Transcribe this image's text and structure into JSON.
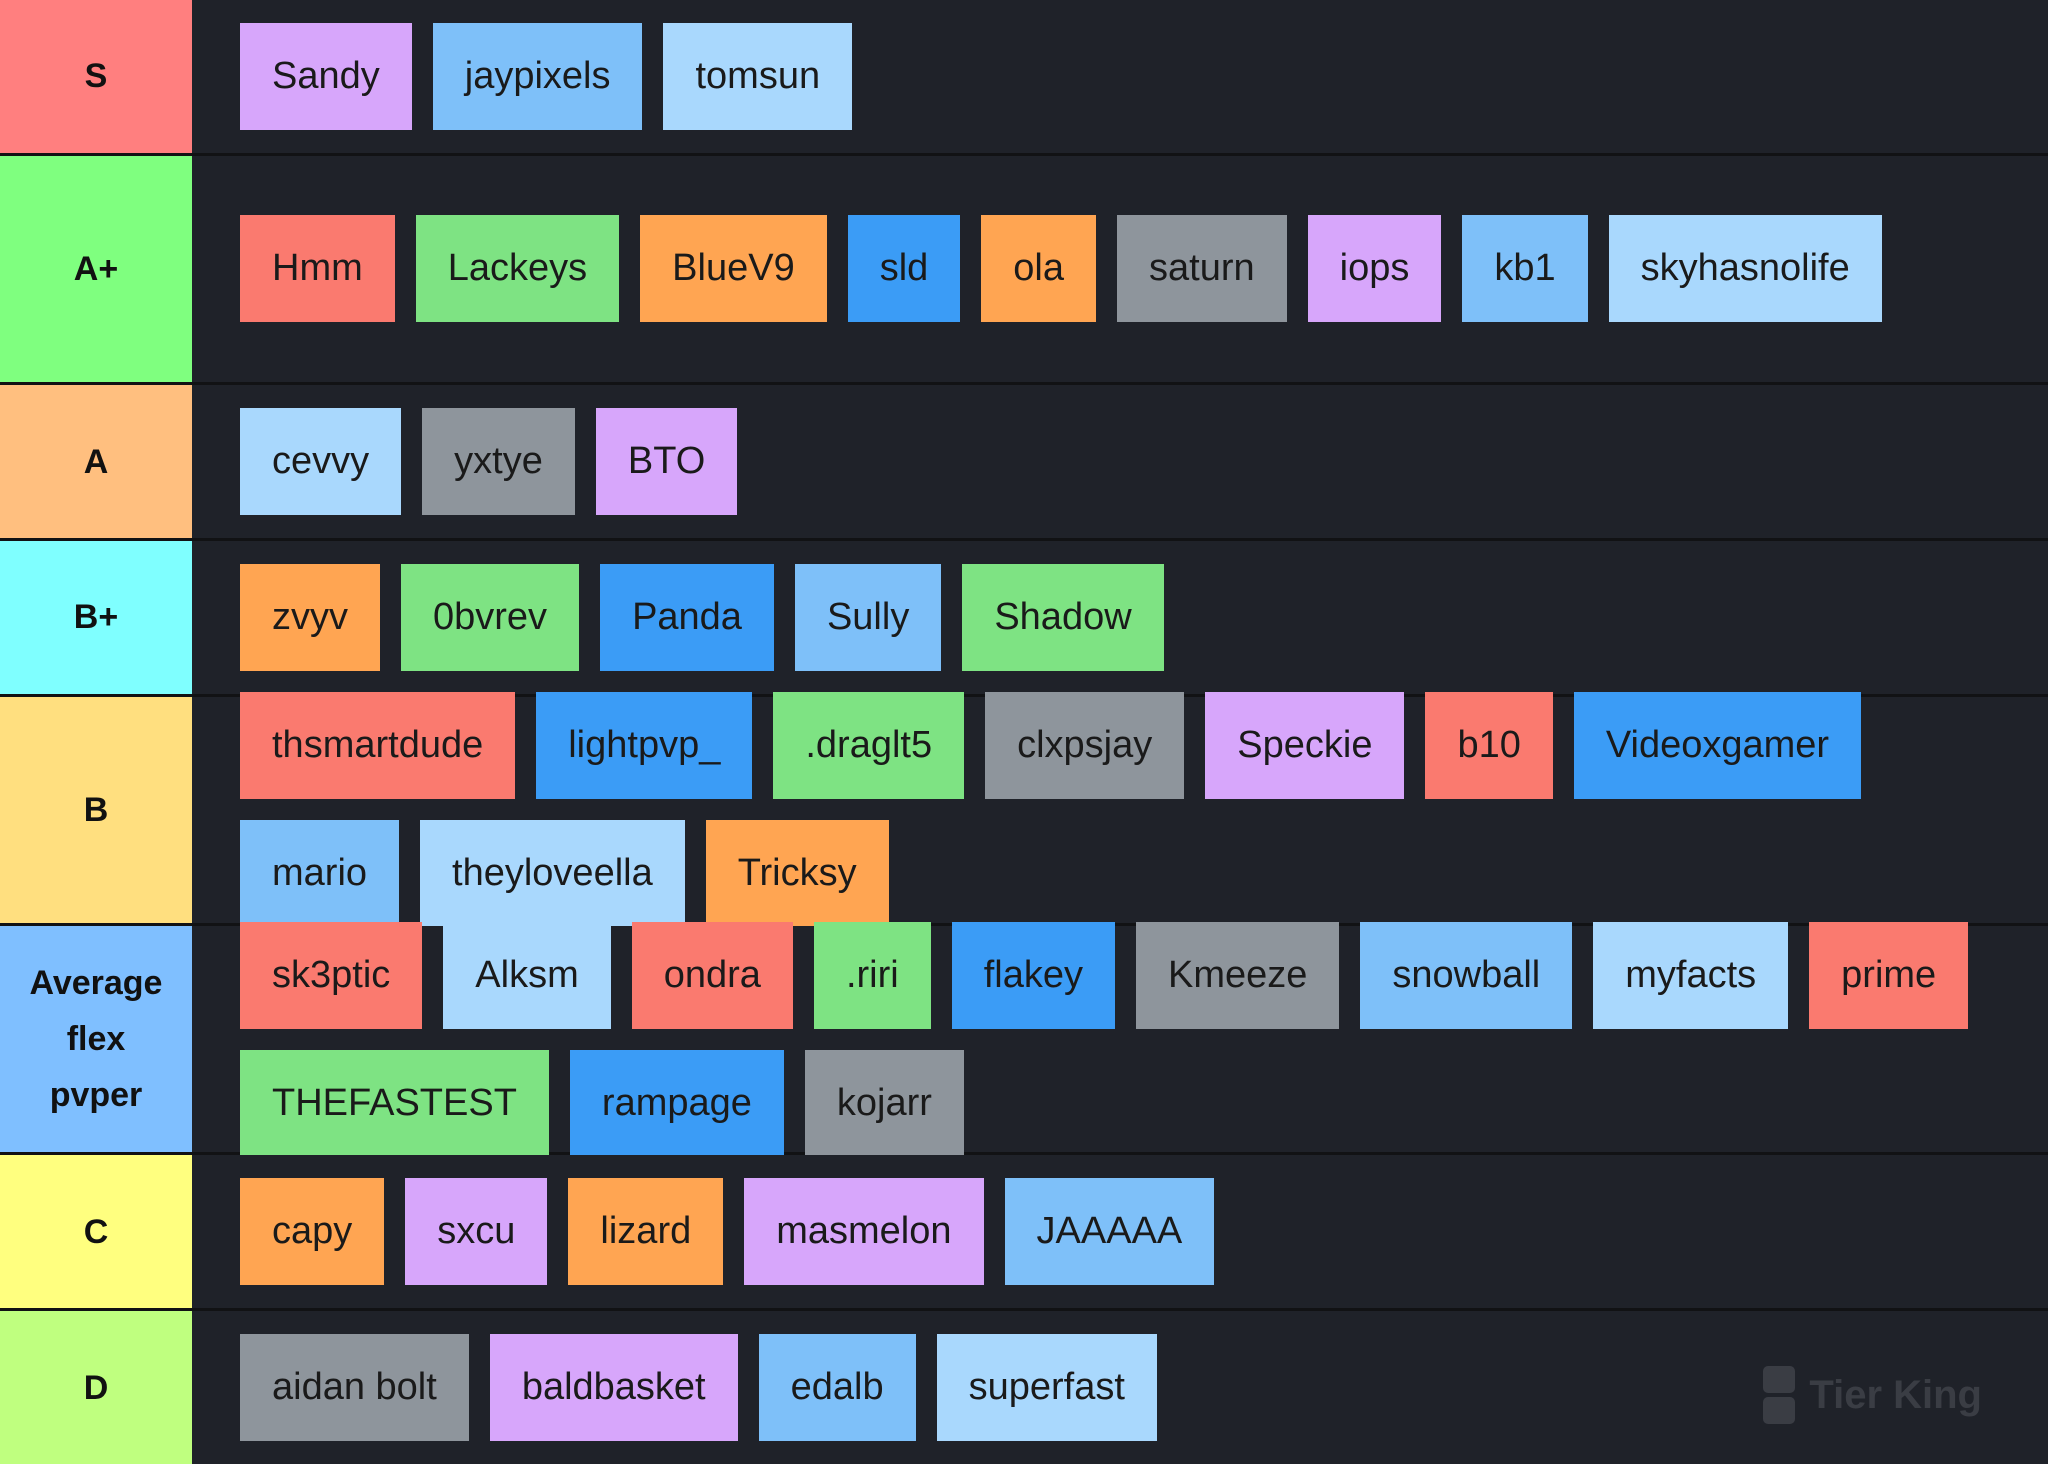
{
  "tiers": [
    {
      "label": "S",
      "color": "#ff7f7f",
      "items": [
        {
          "name": "Sandy",
          "color": "#d7a6fb"
        },
        {
          "name": "jaypixels",
          "color": "#7ec0f9"
        },
        {
          "name": "tomsun",
          "color": "#a9d8fd"
        }
      ]
    },
    {
      "label": "A+",
      "color": "#7fff7f",
      "items": [
        {
          "name": "Hmm",
          "color": "#fa7a6f"
        },
        {
          "name": "Lackeys",
          "color": "#7ee383"
        },
        {
          "name": "BlueV9",
          "color": "#ffa552"
        },
        {
          "name": "sld",
          "color": "#3b9cf6"
        },
        {
          "name": "ola",
          "color": "#ffa552"
        },
        {
          "name": "saturn",
          "color": "#8e959c"
        },
        {
          "name": "iops",
          "color": "#d7a6fb"
        },
        {
          "name": "kb1",
          "color": "#7ec0f9"
        },
        {
          "name": "skyhasnolife",
          "color": "#a9d8fd"
        }
      ]
    },
    {
      "label": "A",
      "color": "#ffbf7f",
      "items": [
        {
          "name": "cevvy",
          "color": "#a9d8fd"
        },
        {
          "name": "yxtye",
          "color": "#8e959c"
        },
        {
          "name": "BTO",
          "color": "#d7a6fb"
        }
      ]
    },
    {
      "label": "B+",
      "color": "#7fffff",
      "items": [
        {
          "name": "zvyv",
          "color": "#ffa552"
        },
        {
          "name": "0bvrev",
          "color": "#7ee383"
        },
        {
          "name": "Panda",
          "color": "#3b9cf6"
        },
        {
          "name": "Sully",
          "color": "#7ec0f9"
        },
        {
          "name": "Shadow",
          "color": "#7ee383"
        }
      ]
    },
    {
      "label": "B",
      "color": "#ffdf7f",
      "items": [
        {
          "name": "thsmartdude",
          "color": "#fa7a6f"
        },
        {
          "name": "lightpvp_",
          "color": "#3b9cf6"
        },
        {
          "name": ".draglt5",
          "color": "#7ee383"
        },
        {
          "name": "clxpsjay",
          "color": "#8e959c"
        },
        {
          "name": "Speckie",
          "color": "#d7a6fb"
        },
        {
          "name": "b10",
          "color": "#fa7a6f"
        },
        {
          "name": "Videoxgamer",
          "color": "#3b9cf6"
        },
        {
          "name": "mario",
          "color": "#7ec0f9"
        },
        {
          "name": "theyloveella",
          "color": "#a9d8fd"
        },
        {
          "name": "Tricksy",
          "color": "#ffa552"
        }
      ]
    },
    {
      "label": "Average flex pvper",
      "color": "#7fbfff",
      "items": [
        {
          "name": "sk3ptic",
          "color": "#fa7a6f"
        },
        {
          "name": "Alksm",
          "color": "#a9d8fd"
        },
        {
          "name": "ondra",
          "color": "#fa7a6f"
        },
        {
          "name": ".riri",
          "color": "#7ee383"
        },
        {
          "name": "flakey",
          "color": "#3b9cf6"
        },
        {
          "name": "Kmeeze",
          "color": "#8e959c"
        },
        {
          "name": "snowball",
          "color": "#7ec0f9"
        },
        {
          "name": "myfacts",
          "color": "#a9d8fd"
        },
        {
          "name": "prime",
          "color": "#fa7a6f"
        },
        {
          "name": "THEFASTEST",
          "color": "#7ee383"
        },
        {
          "name": "rampage",
          "color": "#3b9cf6"
        },
        {
          "name": "kojarr",
          "color": "#8e959c"
        }
      ]
    },
    {
      "label": "C",
      "color": "#ffff7f",
      "items": [
        {
          "name": "capy",
          "color": "#ffa552"
        },
        {
          "name": "sxcu",
          "color": "#d7a6fb"
        },
        {
          "name": "lizard",
          "color": "#ffa552"
        },
        {
          "name": "masmelon",
          "color": "#d7a6fb"
        },
        {
          "name": "JAAAAA",
          "color": "#7ec0f9"
        }
      ]
    },
    {
      "label": "D",
      "color": "#bfff7f",
      "items": [
        {
          "name": "aidan bolt",
          "color": "#8e959c"
        },
        {
          "name": "baldbasket",
          "color": "#d7a6fb"
        },
        {
          "name": "edalb",
          "color": "#7ec0f9"
        },
        {
          "name": "superfast",
          "color": "#a9d8fd"
        }
      ]
    }
  ],
  "watermark": "Tier King"
}
